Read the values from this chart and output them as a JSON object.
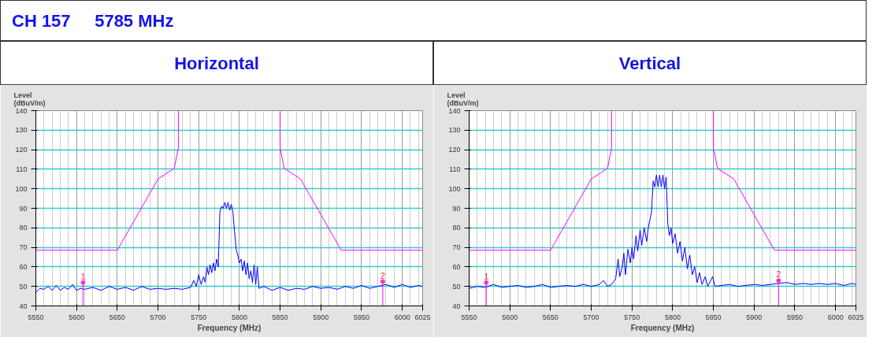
{
  "chart_data": [
    {
      "type": "line",
      "title": "Horizontal",
      "annotations": [
        "CH 157",
        "5785 MHz",
        {
          "text": "1",
          "x": 5608,
          "y": 52
        },
        {
          "text": "2",
          "x": 5976,
          "y": 52.5
        }
      ],
      "xlabel": "Frequency (MHz)",
      "ylabel": "Level\n(dBuV/m)",
      "xlim": [
        5550,
        6025
      ],
      "ylim": [
        40,
        140
      ],
      "xticks": [
        5550,
        5600,
        5650,
        5700,
        5750,
        5800,
        5850,
        5900,
        5950,
        6000,
        6025
      ],
      "yticks": [
        40,
        50,
        60,
        70,
        80,
        90,
        100,
        110,
        120,
        130,
        140
      ],
      "grid": true,
      "marker": "none",
      "line_style": "solid",
      "series": [
        {
          "color": "#ff00ff",
          "x": [
            5550,
            5650,
            5700,
            5720,
            5725,
            5725,
            5790,
            5850,
            5850,
            5855,
            5875,
            5925,
            6025
          ],
          "values": [
            68.5,
            68.5,
            105,
            110.5,
            121,
            140,
            null,
            140,
            121,
            110.5,
            105,
            68.5,
            68.5
          ]
        },
        {
          "color": "#0000ff",
          "x": [
            5550,
            5555,
            5560,
            5565,
            5570,
            5575,
            5580,
            5585,
            5590,
            5595,
            5600,
            5605,
            5610,
            5620,
            5630,
            5640,
            5650,
            5660,
            5670,
            5680,
            5690,
            5700,
            5710,
            5720,
            5730,
            5740,
            5744,
            5747,
            5750,
            5753,
            5756,
            5758,
            5760,
            5762,
            5764,
            5766,
            5768,
            5770,
            5772,
            5774,
            5776,
            5778,
            5780,
            5782,
            5784,
            5786,
            5788,
            5790,
            5792,
            5794,
            5796,
            5798,
            5800,
            5802,
            5804,
            5806,
            5808,
            5810,
            5812,
            5814,
            5816,
            5818,
            5820,
            5822,
            5824,
            5830,
            5840,
            5850,
            5860,
            5870,
            5880,
            5890,
            5900,
            5910,
            5920,
            5930,
            5940,
            5950,
            5960,
            5970,
            5980,
            5990,
            6000,
            6010,
            6020,
            6025
          ],
          "values": [
            47,
            49,
            48.5,
            50,
            48,
            50.5,
            48,
            49.5,
            48.5,
            51,
            48,
            49,
            48.5,
            49.5,
            48,
            50,
            48.5,
            49.5,
            48,
            50,
            48.5,
            49,
            48.5,
            49,
            48.5,
            49.5,
            53,
            50,
            56,
            51,
            55,
            52,
            60,
            56,
            61,
            57,
            62,
            58,
            64,
            60,
            88,
            91,
            90,
            93,
            90,
            93,
            89,
            92,
            88,
            78,
            69,
            66,
            62,
            64,
            58,
            63,
            56,
            62,
            54,
            58,
            52,
            61,
            51,
            60,
            49,
            50,
            48,
            49.5,
            48,
            49,
            48.5,
            50,
            49,
            49.5,
            48.5,
            50,
            49,
            50.5,
            49,
            50,
            51,
            49.5,
            51,
            49.5,
            50.5,
            50
          ]
        }
      ]
    },
    {
      "type": "line",
      "title": "Vertical",
      "annotations": [
        {
          "text": "1",
          "x": 5571,
          "y": 52
        },
        {
          "text": "2",
          "x": 5930,
          "y": 53
        }
      ],
      "xlabel": "Frequency (MHz)",
      "ylabel": "Level\n(dBuV/m)",
      "xlim": [
        5550,
        6025
      ],
      "ylim": [
        40,
        140
      ],
      "xticks": [
        5550,
        5600,
        5650,
        5700,
        5750,
        5800,
        5850,
        5900,
        5950,
        6000,
        6025
      ],
      "yticks": [
        40,
        50,
        60,
        70,
        80,
        90,
        100,
        110,
        120,
        130,
        140
      ],
      "grid": true,
      "marker": "none",
      "line_style": "solid",
      "series": [
        {
          "color": "#ff00ff",
          "x": [
            5550,
            5650,
            5700,
            5720,
            5725,
            5725,
            5790,
            5850,
            5850,
            5855,
            5875,
            5925,
            6025
          ],
          "values": [
            68.5,
            68.5,
            105,
            110.5,
            121,
            140,
            null,
            140,
            121,
            110.5,
            105,
            68.5,
            68.5
          ]
        },
        {
          "color": "#0000ff",
          "x": [
            5550,
            5560,
            5570,
            5580,
            5590,
            5600,
            5610,
            5620,
            5630,
            5640,
            5650,
            5660,
            5670,
            5680,
            5690,
            5700,
            5710,
            5715,
            5720,
            5725,
            5730,
            5733,
            5735,
            5738,
            5740,
            5742,
            5745,
            5748,
            5750,
            5752,
            5755,
            5757,
            5760,
            5762,
            5765,
            5768,
            5770,
            5772,
            5774,
            5776,
            5778,
            5780,
            5782,
            5784,
            5786,
            5788,
            5790,
            5792,
            5794,
            5796,
            5798,
            5800,
            5803,
            5806,
            5809,
            5812,
            5815,
            5818,
            5821,
            5824,
            5827,
            5830,
            5833,
            5836,
            5840,
            5843,
            5849,
            5852,
            5860,
            5870,
            5880,
            5890,
            5900,
            5910,
            5920,
            5930,
            5940,
            5950,
            5960,
            5970,
            5980,
            5990,
            6000,
            6010,
            6020,
            6025
          ],
          "values": [
            49,
            50,
            49.5,
            51,
            49.5,
            50,
            50.5,
            49.5,
            50,
            51,
            49.5,
            50,
            50.5,
            50,
            51,
            50,
            51,
            53,
            50,
            51,
            54,
            64,
            55,
            60,
            67,
            56,
            69,
            62,
            70,
            64,
            76,
            68,
            79,
            71,
            80,
            73,
            80,
            84,
            88,
            104,
            101,
            107,
            101,
            107,
            101,
            107,
            100,
            106,
            82,
            76,
            80,
            72,
            77,
            67,
            73,
            63,
            70,
            59,
            66,
            56,
            60,
            52,
            57,
            51,
            55,
            50,
            55,
            50,
            50.5,
            51,
            50,
            50.5,
            51,
            50.5,
            51,
            51.5,
            52,
            51,
            51.5,
            51,
            51.5,
            51,
            51.5,
            50.5,
            51.5,
            51
          ]
        }
      ]
    }
  ]
}
